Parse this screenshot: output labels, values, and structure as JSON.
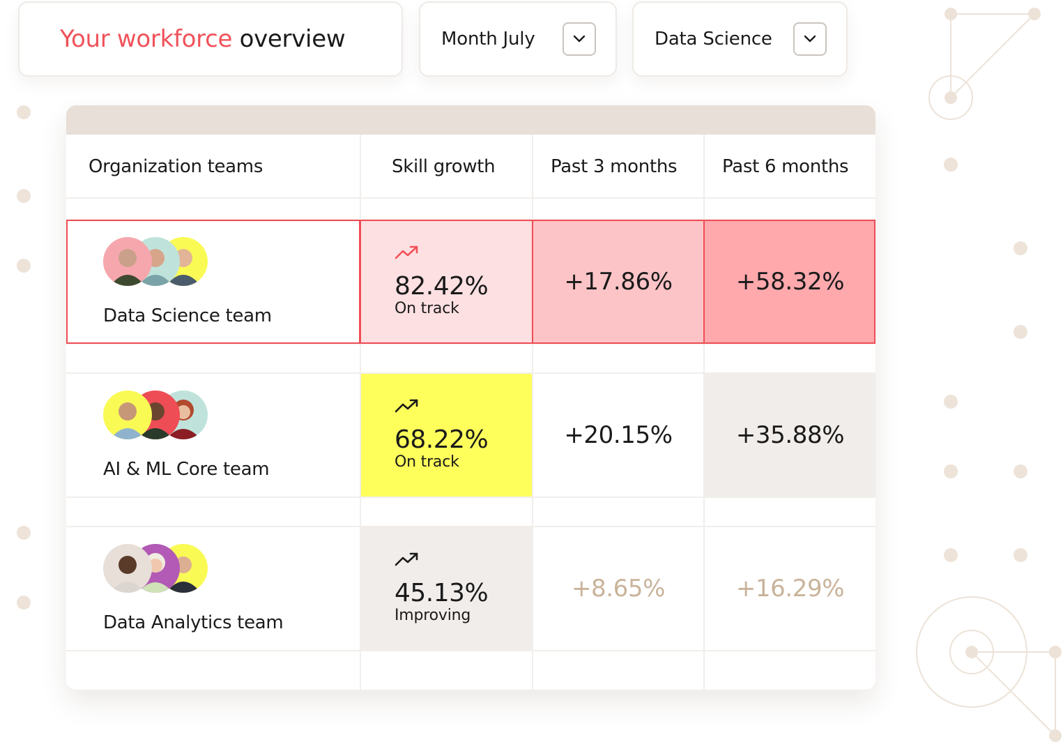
{
  "header": {
    "title_accent": "Your workforce",
    "title_rest": "overview"
  },
  "filters": {
    "month": {
      "label": "Month July",
      "icon": "chevron-down-icon"
    },
    "team": {
      "label": "Data Science",
      "icon": "chevron-down-icon"
    }
  },
  "table": {
    "columns": [
      "Organization teams",
      "Skill growth",
      "Past 3 months",
      "Past 6 months"
    ],
    "rows": [
      {
        "team": "Data Science team",
        "skill_growth": "82.42%",
        "status": "On track",
        "past_3_months": "+17.86%",
        "past_6_months": "+58.32%",
        "trend_icon": "trending-up-icon",
        "selected": true
      },
      {
        "team": "AI & ML Core team",
        "skill_growth": "68.22%",
        "status": "On track",
        "past_3_months": "+20.15%",
        "past_6_months": "+35.88%",
        "trend_icon": "trending-up-icon",
        "selected": false
      },
      {
        "team": "Data Analytics team",
        "skill_growth": "45.13%",
        "status": "Improving",
        "past_3_months": "+8.65%",
        "past_6_months": "+16.29%",
        "trend_icon": "trending-up-icon",
        "selected": false
      }
    ]
  },
  "colors": {
    "accent": "#f0525a",
    "selected_border": "#ef4d55",
    "row1_growth_bg": "#fde0e2",
    "row1_3m_bg": "#fdc4c7",
    "row1_6m_bg": "#ffa9ad",
    "row2_growth_bg": "#ffff5c",
    "row2_6m_bg": "#f1edea",
    "row3_growth_bg": "#f1edea",
    "muted_value": "#c9b39a",
    "header_bar": "#e7dfd8"
  }
}
